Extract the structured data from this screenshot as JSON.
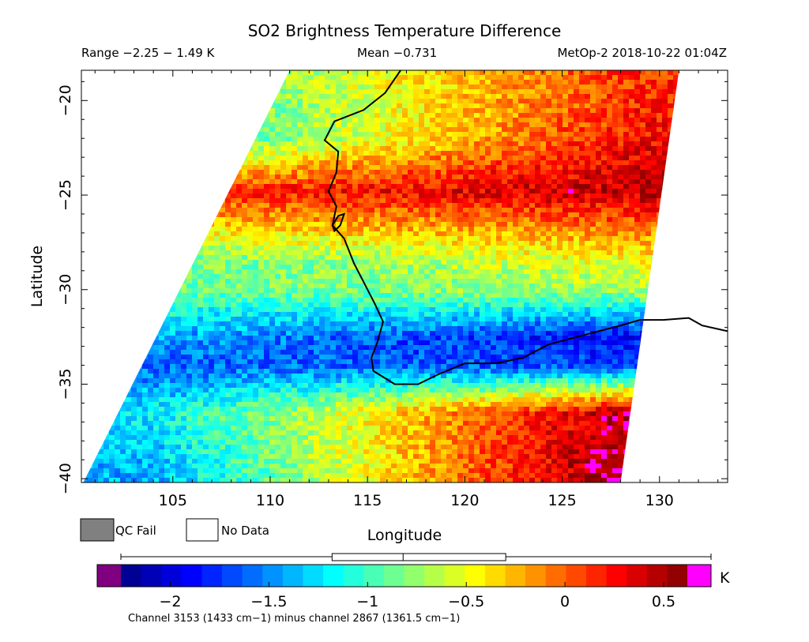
{
  "header": {
    "title": "SO2 Brightness Temperature Difference",
    "range": "Range −2.25 − 1.49 K",
    "mean": "Mean −0.731",
    "satellite_time": "MetOp-2 2018-10-22 01:04Z"
  },
  "chart_data": {
    "type": "heatmap",
    "title": "SO2 Brightness Temperature Difference",
    "xlabel": "Longitude",
    "ylabel": "Latitude",
    "xlim": [
      100.3,
      133.5
    ],
    "ylim": [
      -40.2,
      -18.4
    ],
    "xticks": [
      105,
      110,
      115,
      120,
      125,
      130
    ],
    "yticks": [
      -20,
      -25,
      -30,
      -35,
      -40
    ],
    "value_range": [
      -2.25,
      1.49
    ],
    "mean": -0.731,
    "units": "K",
    "colormap": "jet",
    "swath_corners": {
      "top_left": [
        111.0,
        -18.4
      ],
      "top_right": [
        131.0,
        -18.4
      ],
      "bottom_right": [
        128.0,
        -40.2
      ],
      "bottom_left": [
        100.4,
        -40.2
      ]
    },
    "bands": [
      {
        "lat": -19.5,
        "value_west": -1.1,
        "value_east": 0.15
      },
      {
        "lat": -22.0,
        "value_west": -1.2,
        "value_east": 0.25
      },
      {
        "lat": -24.8,
        "value_west": 0.1,
        "value_east": 0.45
      },
      {
        "lat": -26.3,
        "value_west": -0.3,
        "value_east": 0.05
      },
      {
        "lat": -28.5,
        "value_west": -0.9,
        "value_east": -0.5
      },
      {
        "lat": -30.0,
        "value_west": -0.9,
        "value_east": -0.7
      },
      {
        "lat": -32.5,
        "value_west": -1.4,
        "value_east": -1.9
      },
      {
        "lat": -34.0,
        "value_west": -1.6,
        "value_east": -1.7
      },
      {
        "lat": -36.5,
        "value_west": -1.2,
        "value_east": 0.55
      },
      {
        "lat": -39.5,
        "value_west": -1.4,
        "value_east": 0.7
      }
    ],
    "colorbar": {
      "ticks": [
        -2,
        -1.5,
        -1,
        -0.5,
        0,
        0.5
      ],
      "min": -2.25,
      "max": 0.62,
      "unit_label": "K",
      "boxplot": {
        "whisker_low": -2.25,
        "q1": -1.18,
        "median": -0.82,
        "q3": -0.3,
        "whisker_high": 1.49
      },
      "caption": "Channel 3153 (1433 cm−1) minus channel 2867 (1361.5 cm−1)"
    },
    "legend": {
      "qc_fail_label": "QC Fail",
      "no_data_label": "No Data",
      "qc_fail_color": "#808080",
      "no_data_color": "#ffffff",
      "under_color": "#800080",
      "over_color": "#ff00ff"
    },
    "coastline": [
      [
        116.7,
        -18.4
      ],
      [
        115.9,
        -19.6
      ],
      [
        114.8,
        -20.5
      ],
      [
        113.3,
        -21.1
      ],
      [
        112.8,
        -22.1
      ],
      [
        113.5,
        -22.7
      ],
      [
        113.4,
        -23.8
      ],
      [
        113.0,
        -24.8
      ],
      [
        113.4,
        -25.6
      ],
      [
        113.2,
        -26.6
      ],
      [
        113.8,
        -27.3
      ],
      [
        114.3,
        -28.6
      ],
      [
        114.9,
        -29.8
      ],
      [
        115.4,
        -30.8
      ],
      [
        115.8,
        -31.7
      ],
      [
        115.5,
        -32.8
      ],
      [
        115.2,
        -33.6
      ],
      [
        115.3,
        -34.3
      ],
      [
        116.4,
        -35.0
      ],
      [
        117.6,
        -35.0
      ],
      [
        118.6,
        -34.5
      ],
      [
        120.0,
        -33.9
      ],
      [
        121.6,
        -33.9
      ],
      [
        123.0,
        -33.6
      ],
      [
        124.3,
        -32.9
      ],
      [
        126.5,
        -32.3
      ],
      [
        128.0,
        -31.9
      ],
      [
        129.0,
        -31.6
      ],
      [
        130.2,
        -31.6
      ],
      [
        131.5,
        -31.5
      ],
      [
        132.2,
        -31.9
      ],
      [
        133.5,
        -32.2
      ]
    ],
    "lake_outline": [
      [
        113.2,
        -26.6
      ],
      [
        113.5,
        -26.1
      ],
      [
        113.8,
        -26.0
      ],
      [
        113.6,
        -26.6
      ],
      [
        113.3,
        -26.9
      ],
      [
        113.2,
        -26.6
      ]
    ]
  }
}
